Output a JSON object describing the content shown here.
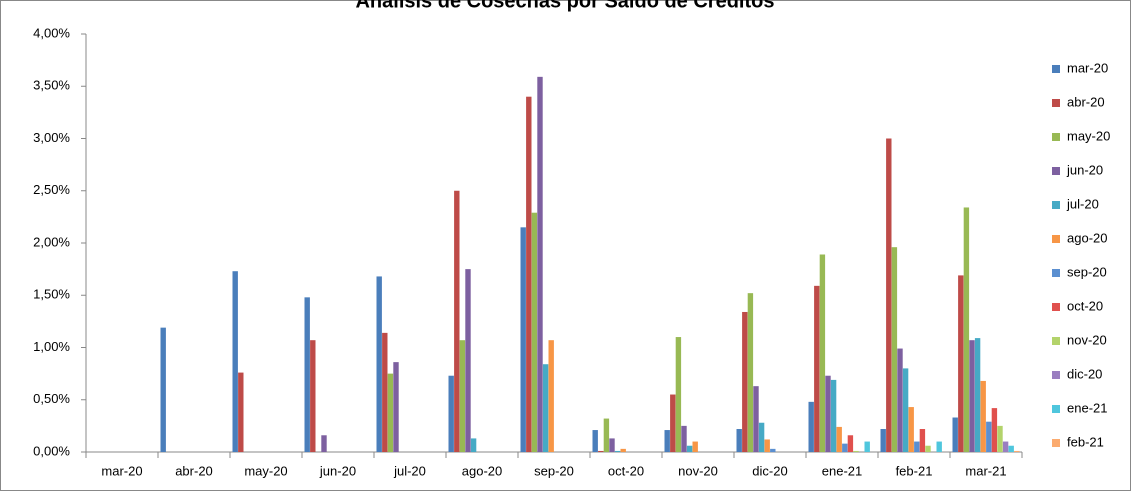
{
  "chart_data": {
    "type": "bar",
    "title": "Análisis de Cosechas por Saldo de Créditos",
    "categories": [
      "mar-20",
      "abr-20",
      "may-20",
      "jun-20",
      "jul-20",
      "ago-20",
      "sep-20",
      "oct-20",
      "nov-20",
      "dic-20",
      "ene-21",
      "feb-21",
      "mar-21"
    ],
    "ylim": [
      0,
      4
    ],
    "yticks": [
      {
        "value": 0,
        "label": "0,00%"
      },
      {
        "value": 0.5,
        "label": "0,50%"
      },
      {
        "value": 1,
        "label": "1,00%"
      },
      {
        "value": 1.5,
        "label": "1,50%"
      },
      {
        "value": 2,
        "label": "2,00%"
      },
      {
        "value": 2.5,
        "label": "2,50%"
      },
      {
        "value": 3,
        "label": "3,00%"
      },
      {
        "value": 3.5,
        "label": "3,50%"
      },
      {
        "value": 4,
        "label": "4,00%"
      }
    ],
    "legend": "right",
    "series": [
      {
        "name": "mar-20",
        "color": "#4a7ebb",
        "values": [
          0,
          1.19,
          1.73,
          1.48,
          1.68,
          0.73,
          2.15,
          0.21,
          0.21,
          0.22,
          0.48,
          0.22,
          0.33
        ]
      },
      {
        "name": "abr-20",
        "color": "#be4b48",
        "values": [
          null,
          0,
          0.76,
          1.07,
          1.14,
          2.5,
          3.4,
          0.01,
          0.55,
          1.34,
          1.59,
          3.0,
          1.69
        ]
      },
      {
        "name": "may-20",
        "color": "#98b954",
        "values": [
          null,
          null,
          0,
          0,
          0.75,
          1.07,
          2.29,
          0.32,
          1.1,
          1.52,
          1.89,
          1.96,
          2.34
        ]
      },
      {
        "name": "jun-20",
        "color": "#7d60a0",
        "values": [
          null,
          null,
          null,
          0.16,
          0.86,
          1.75,
          3.59,
          0.13,
          0.25,
          0.63,
          0.73,
          0.99,
          1.07
        ]
      },
      {
        "name": "jul-20",
        "color": "#46aac5",
        "values": [
          null,
          null,
          null,
          null,
          0,
          0.13,
          0.84,
          0.01,
          0.06,
          0.28,
          0.69,
          0.8,
          1.09
        ]
      },
      {
        "name": "ago-20",
        "color": "#f79646",
        "values": [
          null,
          null,
          null,
          null,
          null,
          0,
          1.07,
          0.03,
          0.1,
          0.12,
          0.24,
          0.43,
          0.68
        ]
      },
      {
        "name": "sep-20",
        "color": "#5b8fd0",
        "values": [
          null,
          null,
          null,
          null,
          null,
          null,
          0,
          0,
          0,
          0.03,
          0.08,
          0.1,
          0.29
        ]
      },
      {
        "name": "oct-20",
        "color": "#e0504d",
        "values": [
          null,
          null,
          null,
          null,
          null,
          null,
          null,
          0,
          0,
          0,
          0.16,
          0.22,
          0.42
        ]
      },
      {
        "name": "nov-20",
        "color": "#b3d36b",
        "values": [
          null,
          null,
          null,
          null,
          null,
          null,
          null,
          null,
          0,
          0,
          0.01,
          0.06,
          0.25
        ]
      },
      {
        "name": "dic-20",
        "color": "#9a7ec0",
        "values": [
          null,
          null,
          null,
          null,
          null,
          null,
          null,
          null,
          null,
          0,
          0,
          0,
          0.1
        ]
      },
      {
        "name": "ene-21",
        "color": "#4fc6dd",
        "values": [
          null,
          null,
          null,
          null,
          null,
          null,
          null,
          null,
          null,
          null,
          0.1,
          0.1,
          0.06
        ]
      },
      {
        "name": "feb-21",
        "color": "#fbab6f",
        "values": [
          null,
          null,
          null,
          null,
          null,
          null,
          null,
          null,
          null,
          null,
          null,
          0,
          0.01
        ]
      }
    ]
  }
}
